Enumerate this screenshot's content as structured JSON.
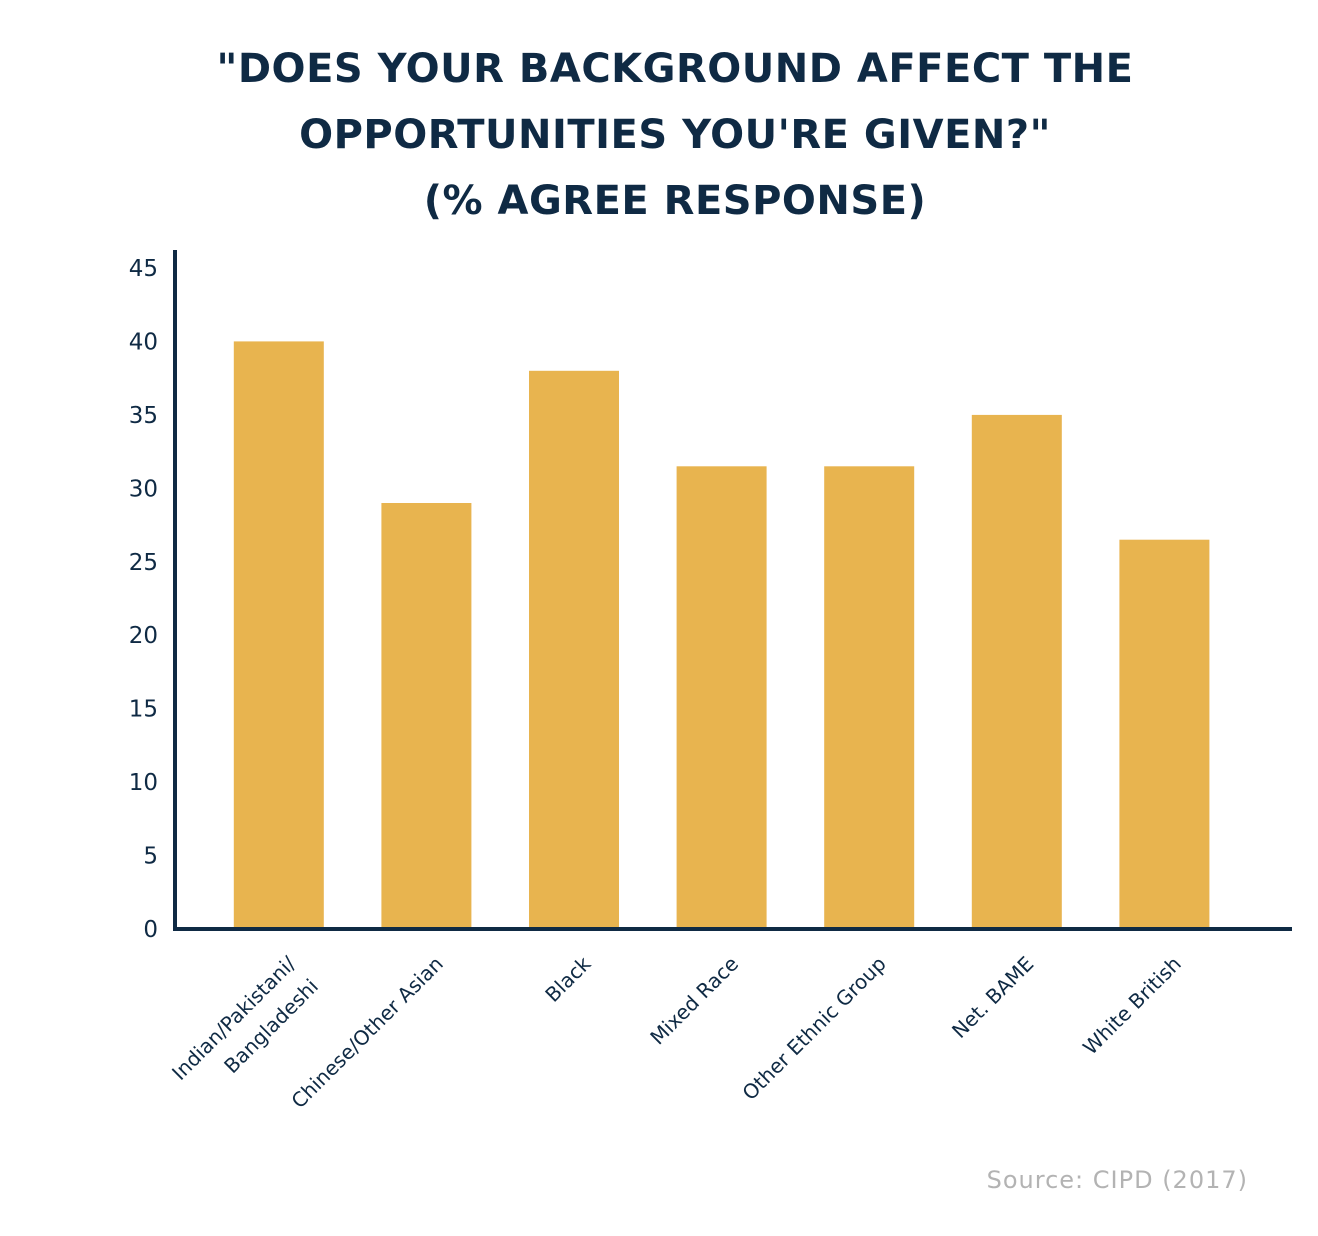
{
  "chart_data": {
    "type": "bar",
    "title_lines": [
      "\"DOES YOUR BACKGROUND AFFECT THE",
      "OPPORTUNITIES YOU'RE GIVEN?\"",
      "(% AGREE RESPONSE)"
    ],
    "categories": [
      [
        "Indian/Pakistani/",
        "Bangladeshi"
      ],
      [
        "Chinese/Other Asian"
      ],
      [
        "Black"
      ],
      [
        "Mixed Race"
      ],
      [
        "Other Ethnic Group"
      ],
      [
        "Net. BAME"
      ],
      [
        "White British"
      ]
    ],
    "values": [
      40,
      29,
      38,
      31.5,
      31.5,
      35,
      26.5
    ],
    "ylim": [
      0,
      45
    ],
    "yticks": [
      0,
      5,
      10,
      15,
      20,
      25,
      30,
      35,
      40,
      45
    ],
    "xlabel": "",
    "ylabel": "",
    "grid": false,
    "bar_color": "#e8b44f",
    "axis_color": "#0f2a44"
  },
  "source": "Source: CIPD (2017)"
}
